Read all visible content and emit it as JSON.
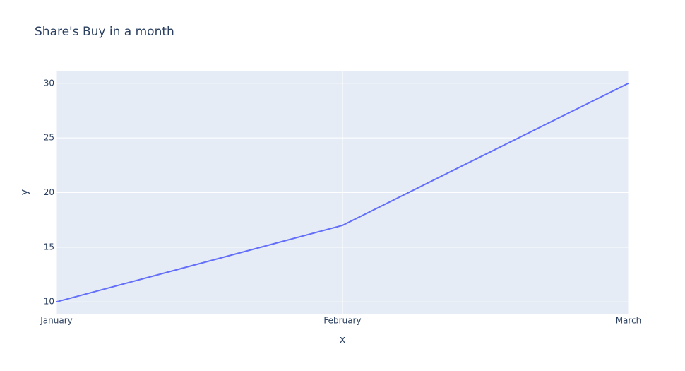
{
  "chart_data": {
    "type": "line",
    "title": "Share's Buy in a month",
    "categories": [
      "January",
      "February",
      "March"
    ],
    "series": [
      {
        "name": "y",
        "color": "#636efa",
        "values": [
          10,
          17,
          30
        ]
      }
    ],
    "x_label": "x",
    "y_label": "y",
    "ylim": [
      8.85,
      31.15
    ],
    "yticks": [
      10,
      15,
      20,
      25,
      30
    ],
    "grid": true
  }
}
